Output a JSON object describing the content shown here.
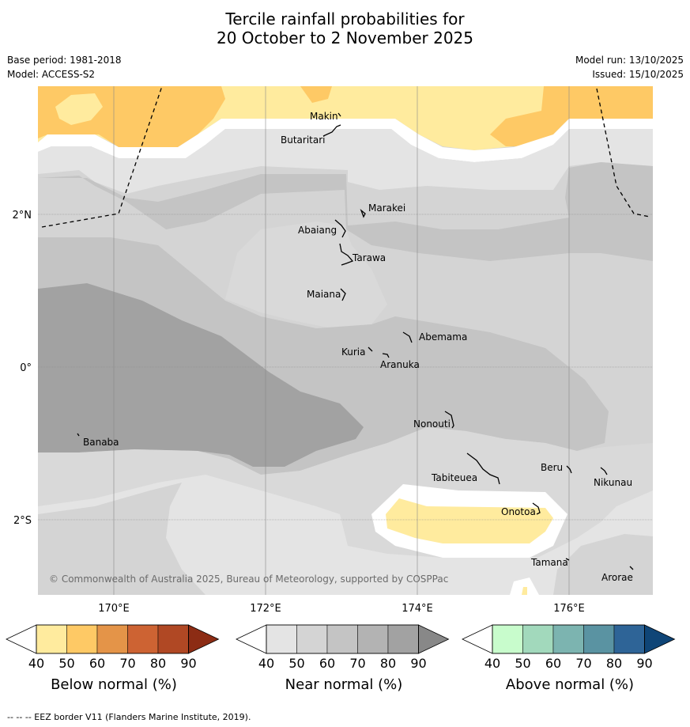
{
  "title": {
    "line1": "Tercile rainfall probabilities for",
    "line2": "20 October to 2 November 2025"
  },
  "meta": {
    "base_period": "Base period: 1981-2018",
    "model": "Model: ACCESS-S2",
    "model_run": "Model run: 13/10/2025",
    "issued": "Issued: 15/10/2025"
  },
  "axes": {
    "lat_labels": [
      "2°N",
      "0°",
      "2°S"
    ],
    "lon_labels": [
      "170°E",
      "172°E",
      "174°E",
      "176°E"
    ]
  },
  "places": [
    {
      "name": "Makin"
    },
    {
      "name": "Butaritari"
    },
    {
      "name": "Marakei"
    },
    {
      "name": "Abaiang"
    },
    {
      "name": "Tarawa"
    },
    {
      "name": "Maiana"
    },
    {
      "name": "Abemama"
    },
    {
      "name": "Kuria"
    },
    {
      "name": "Aranuka"
    },
    {
      "name": "Nonouti"
    },
    {
      "name": "Banaba"
    },
    {
      "name": "Tabiteuea"
    },
    {
      "name": "Beru"
    },
    {
      "name": "Nikunau"
    },
    {
      "name": "Onotoa"
    },
    {
      "name": "Tamana"
    },
    {
      "name": "Arorae"
    }
  ],
  "copyright": "© Commonwealth of Australia 2025, Bureau of Meteorology, supported by COSPPac",
  "legend": {
    "ticks": [
      "40",
      "50",
      "60",
      "70",
      "80",
      "90"
    ],
    "below": {
      "title": "Below normal (%)",
      "colors": [
        "#ffeb9e",
        "#fec965",
        "#e49448",
        "#cd6333",
        "#b04824",
        "#8c2c14"
      ]
    },
    "near": {
      "title": "Near normal (%)",
      "colors": [
        "#e4e4e4",
        "#d4d4d4",
        "#c4c4c4",
        "#b3b3b3",
        "#a2a2a2",
        "#888888"
      ]
    },
    "above": {
      "title": "Above normal (%)",
      "colors": [
        "#c8fccc",
        "#a2d9bc",
        "#7cb4b0",
        "#5a93a2",
        "#2e6497",
        "#0f4577"
      ]
    }
  },
  "footer": "--  --  -- EEZ border V11 (Flanders Marine Institute, 2019)."
}
